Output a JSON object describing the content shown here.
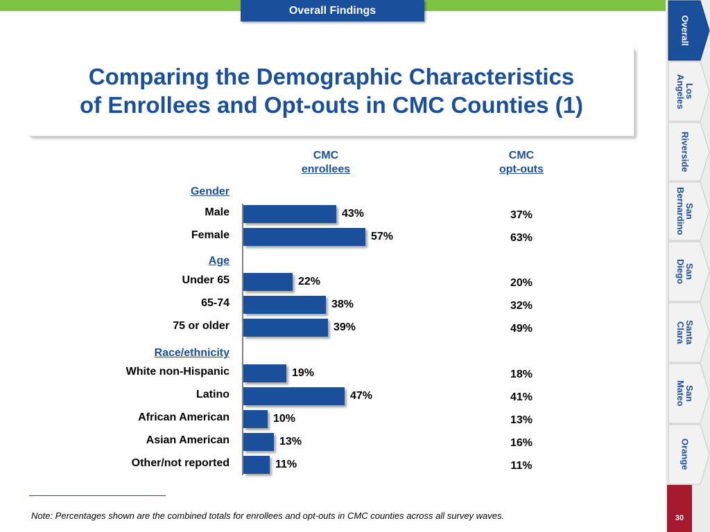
{
  "header": {
    "tab_label": "Overall Findings"
  },
  "title": {
    "line1": "Comparing the Demographic Characteristics",
    "line2": "of Enrollees and Opt-outs in CMC Counties (1)"
  },
  "nav": {
    "items": [
      {
        "label": "Overall",
        "active": true
      },
      {
        "label": "Los\nAngeles",
        "active": false
      },
      {
        "label": "Riverside",
        "active": false
      },
      {
        "label": "San\nBernardino",
        "active": false
      },
      {
        "label": "San\nDiego",
        "active": false
      },
      {
        "label": "Santa\nClara",
        "active": false
      },
      {
        "label": "San\nMateo",
        "active": false
      },
      {
        "label": "Orange",
        "active": false
      }
    ],
    "page_number": "30"
  },
  "columns": {
    "enrollees": {
      "line1": "CMC",
      "line2": "enrollees"
    },
    "optouts": {
      "line1": "CMC",
      "line2": "opt-outs"
    }
  },
  "chart_data": {
    "type": "bar",
    "orientation": "horizontal",
    "title": "Comparing the Demographic Characteristics of Enrollees and Opt-outs in CMC Counties (1)",
    "xlim": [
      0,
      100
    ],
    "unit": "%",
    "groups": [
      {
        "name": "Gender",
        "rows": [
          {
            "label": "Male",
            "enrollees": 43,
            "optouts": 37
          },
          {
            "label": "Female",
            "enrollees": 57,
            "optouts": 63
          }
        ]
      },
      {
        "name": "Age",
        "rows": [
          {
            "label": "Under 65",
            "enrollees": 22,
            "optouts": 20
          },
          {
            "label": "65-74",
            "enrollees": 38,
            "optouts": 32
          },
          {
            "label": "75 or older",
            "enrollees": 39,
            "optouts": 49
          }
        ]
      },
      {
        "name": "Race/ethnicity",
        "rows": [
          {
            "label": "White non-Hispanic",
            "enrollees": 19,
            "optouts": 18
          },
          {
            "label": "Latino",
            "enrollees": 47,
            "optouts": 41
          },
          {
            "label": "African American",
            "enrollees": 10,
            "optouts": 13
          },
          {
            "label": "Asian American",
            "enrollees": 13,
            "optouts": 16
          },
          {
            "label": "Other/not reported",
            "enrollees": 11,
            "optouts": 11
          }
        ]
      }
    ]
  },
  "footnote": "Note: Percentages shown are the combined totals for enrollees and opt-outs in CMC counties across all survey waves.",
  "colors": {
    "brand_blue": "#1a4f9c",
    "green": "#7dc242",
    "page_red": "#a6192e"
  }
}
